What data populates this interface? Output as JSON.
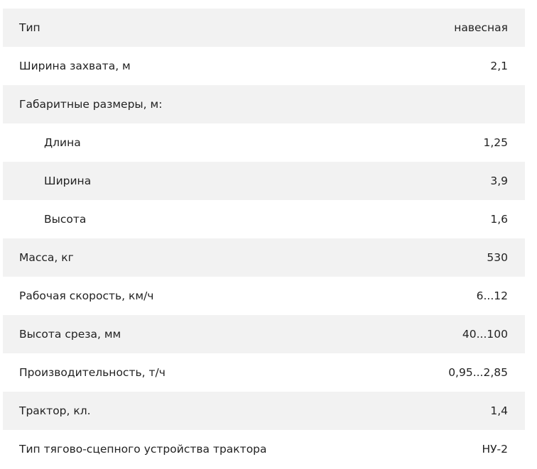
{
  "specs": {
    "rows": [
      {
        "label": "Тип",
        "value": "навесная",
        "indent": false
      },
      {
        "label": "Ширина захвата, м",
        "value": "2,1",
        "indent": false
      },
      {
        "label": "Габаритные размеры, м:",
        "value": "",
        "indent": false
      },
      {
        "label": "Длина",
        "value": "1,25",
        "indent": true
      },
      {
        "label": "Ширина",
        "value": "3,9",
        "indent": true
      },
      {
        "label": "Высота",
        "value": "1,6",
        "indent": true
      },
      {
        "label": "Масса, кг",
        "value": "530",
        "indent": false
      },
      {
        "label": "Рабочая скорость, км/ч",
        "value": "6...12",
        "indent": false
      },
      {
        "label": "Высота среза, мм",
        "value": "40...100",
        "indent": false
      },
      {
        "label": "Производительность, т/ч",
        "value": "0,95...2,85",
        "indent": false
      },
      {
        "label": "Трактор, кл.",
        "value": "1,4",
        "indent": false
      },
      {
        "label": "Тип тягово-сцепного устройства трактора",
        "value": "НУ-2",
        "indent": false
      }
    ],
    "colors": {
      "stripe": "#f2f2f2",
      "text": "#222222"
    }
  }
}
